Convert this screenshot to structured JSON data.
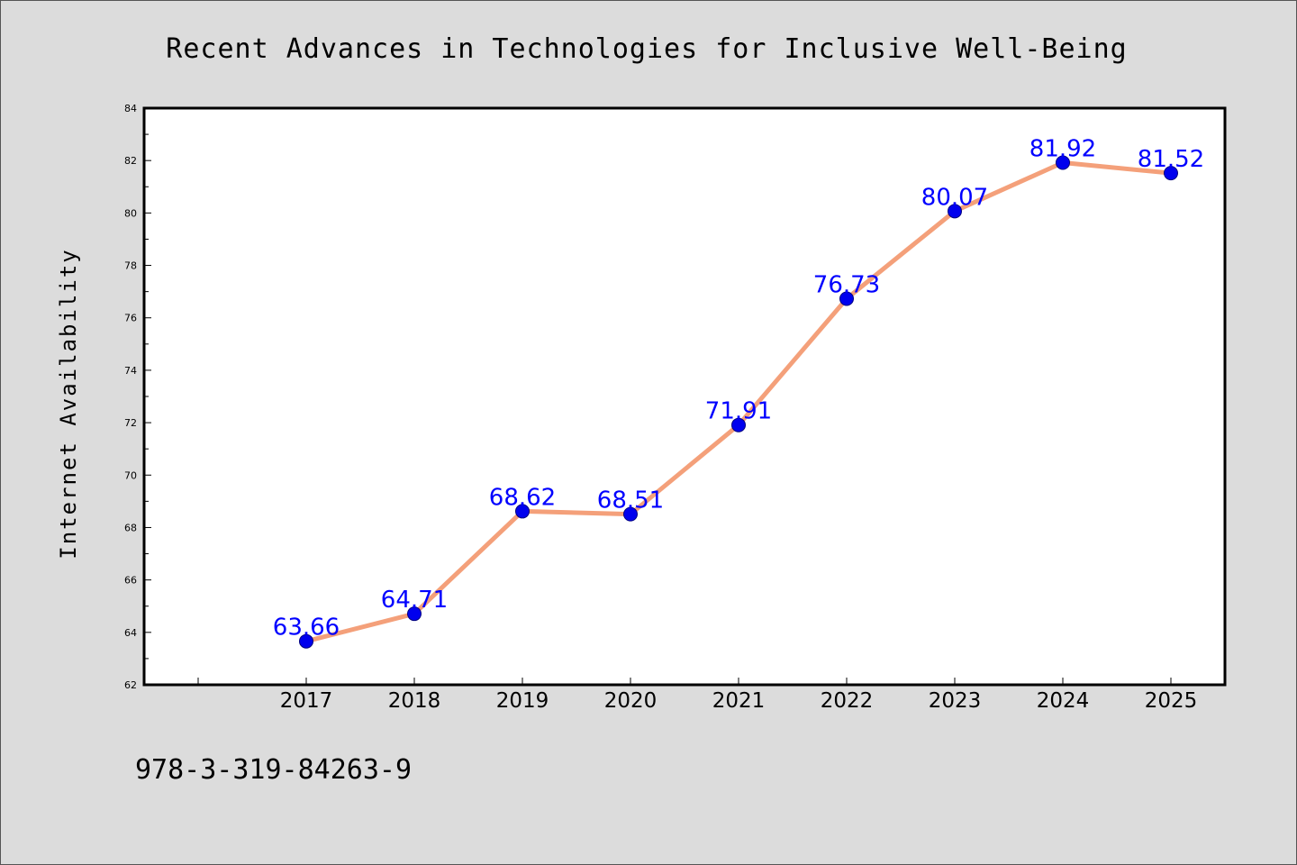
{
  "chart_data": {
    "type": "line",
    "title": "Recent Advances in Technologies for Inclusive Well-Being",
    "xlabel": "",
    "ylabel": "Internet Availability",
    "categories": [
      "2017",
      "2018",
      "2019",
      "2020",
      "2021",
      "2022",
      "2023",
      "2024",
      "2025"
    ],
    "series": [
      {
        "values": [
          63.66,
          64.71,
          68.62,
          68.51,
          71.91,
          76.73,
          80.07,
          81.92,
          81.52
        ],
        "labels": [
          "63.66",
          "64.71",
          "68.62",
          "68.51",
          "71.91",
          "76.73",
          "80.07",
          "81.92",
          "81.52"
        ],
        "line_color": "#f4a07a",
        "marker_color": "#0000ee"
      }
    ],
    "ylim": [
      62,
      84
    ],
    "yticks": [
      "62",
      "64",
      "66",
      "68",
      "70",
      "72",
      "74",
      "76",
      "78",
      "80",
      "82",
      "84"
    ],
    "grid": false,
    "label_color": "#0000ff",
    "background": "#dcdcdc",
    "plot_background": "#ffffff"
  },
  "footer": {
    "isbn": "978-3-319-84263-9"
  }
}
